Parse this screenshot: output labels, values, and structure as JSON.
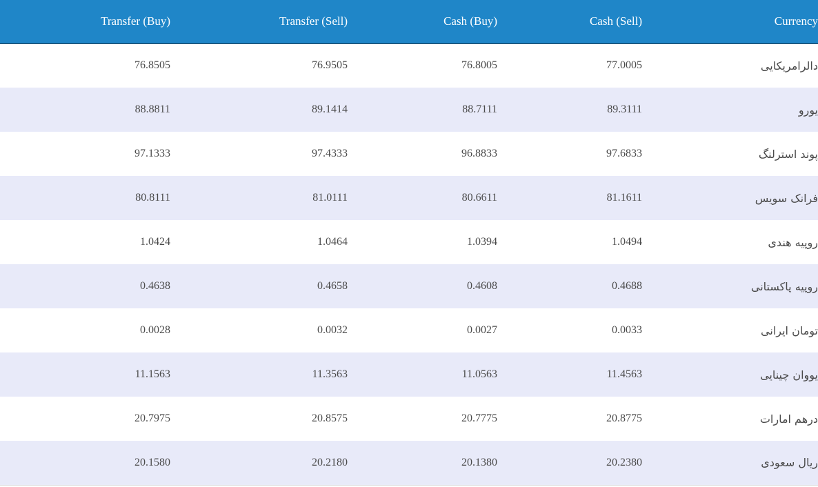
{
  "table": {
    "headers": {
      "transfer_buy": "Transfer (Buy)",
      "transfer_sell": "Transfer (Sell)",
      "cash_buy": "Cash (Buy)",
      "cash_sell": "Cash (Sell)",
      "currency": "Currency"
    },
    "rows": [
      {
        "transfer_buy": "76.8505",
        "transfer_sell": "76.9505",
        "cash_buy": "76.8005",
        "cash_sell": "77.0005",
        "currency": "دالرامریکایی"
      },
      {
        "transfer_buy": "88.8811",
        "transfer_sell": "89.1414",
        "cash_buy": "88.7111",
        "cash_sell": "89.3111",
        "currency": "یورو"
      },
      {
        "transfer_buy": "97.1333",
        "transfer_sell": "97.4333",
        "cash_buy": "96.8833",
        "cash_sell": "97.6833",
        "currency": "پوند استرلنگ"
      },
      {
        "transfer_buy": "80.8111",
        "transfer_sell": "81.0111",
        "cash_buy": "80.6611",
        "cash_sell": "81.1611",
        "currency": "فرانک سویس"
      },
      {
        "transfer_buy": "1.0424",
        "transfer_sell": "1.0464",
        "cash_buy": "1.0394",
        "cash_sell": "1.0494",
        "currency": "روپیه هندی"
      },
      {
        "transfer_buy": "0.4638",
        "transfer_sell": "0.4658",
        "cash_buy": "0.4608",
        "cash_sell": "0.4688",
        "currency": "روپیه پاکستانی"
      },
      {
        "transfer_buy": "0.0028",
        "transfer_sell": "0.0032",
        "cash_buy": "0.0027",
        "cash_sell": "0.0033",
        "currency": "تومان ایرانی"
      },
      {
        "transfer_buy": "11.1563",
        "transfer_sell": "11.3563",
        "cash_buy": "11.0563",
        "cash_sell": "11.4563",
        "currency": "یووان چینایی"
      },
      {
        "transfer_buy": "20.7975",
        "transfer_sell": "20.8575",
        "cash_buy": "20.7775",
        "cash_sell": "20.8775",
        "currency": "درهم امارات"
      },
      {
        "transfer_buy": "20.1580",
        "transfer_sell": "20.2180",
        "cash_buy": "20.1380",
        "cash_sell": "20.2380",
        "currency": "ریال سعودی"
      }
    ]
  }
}
